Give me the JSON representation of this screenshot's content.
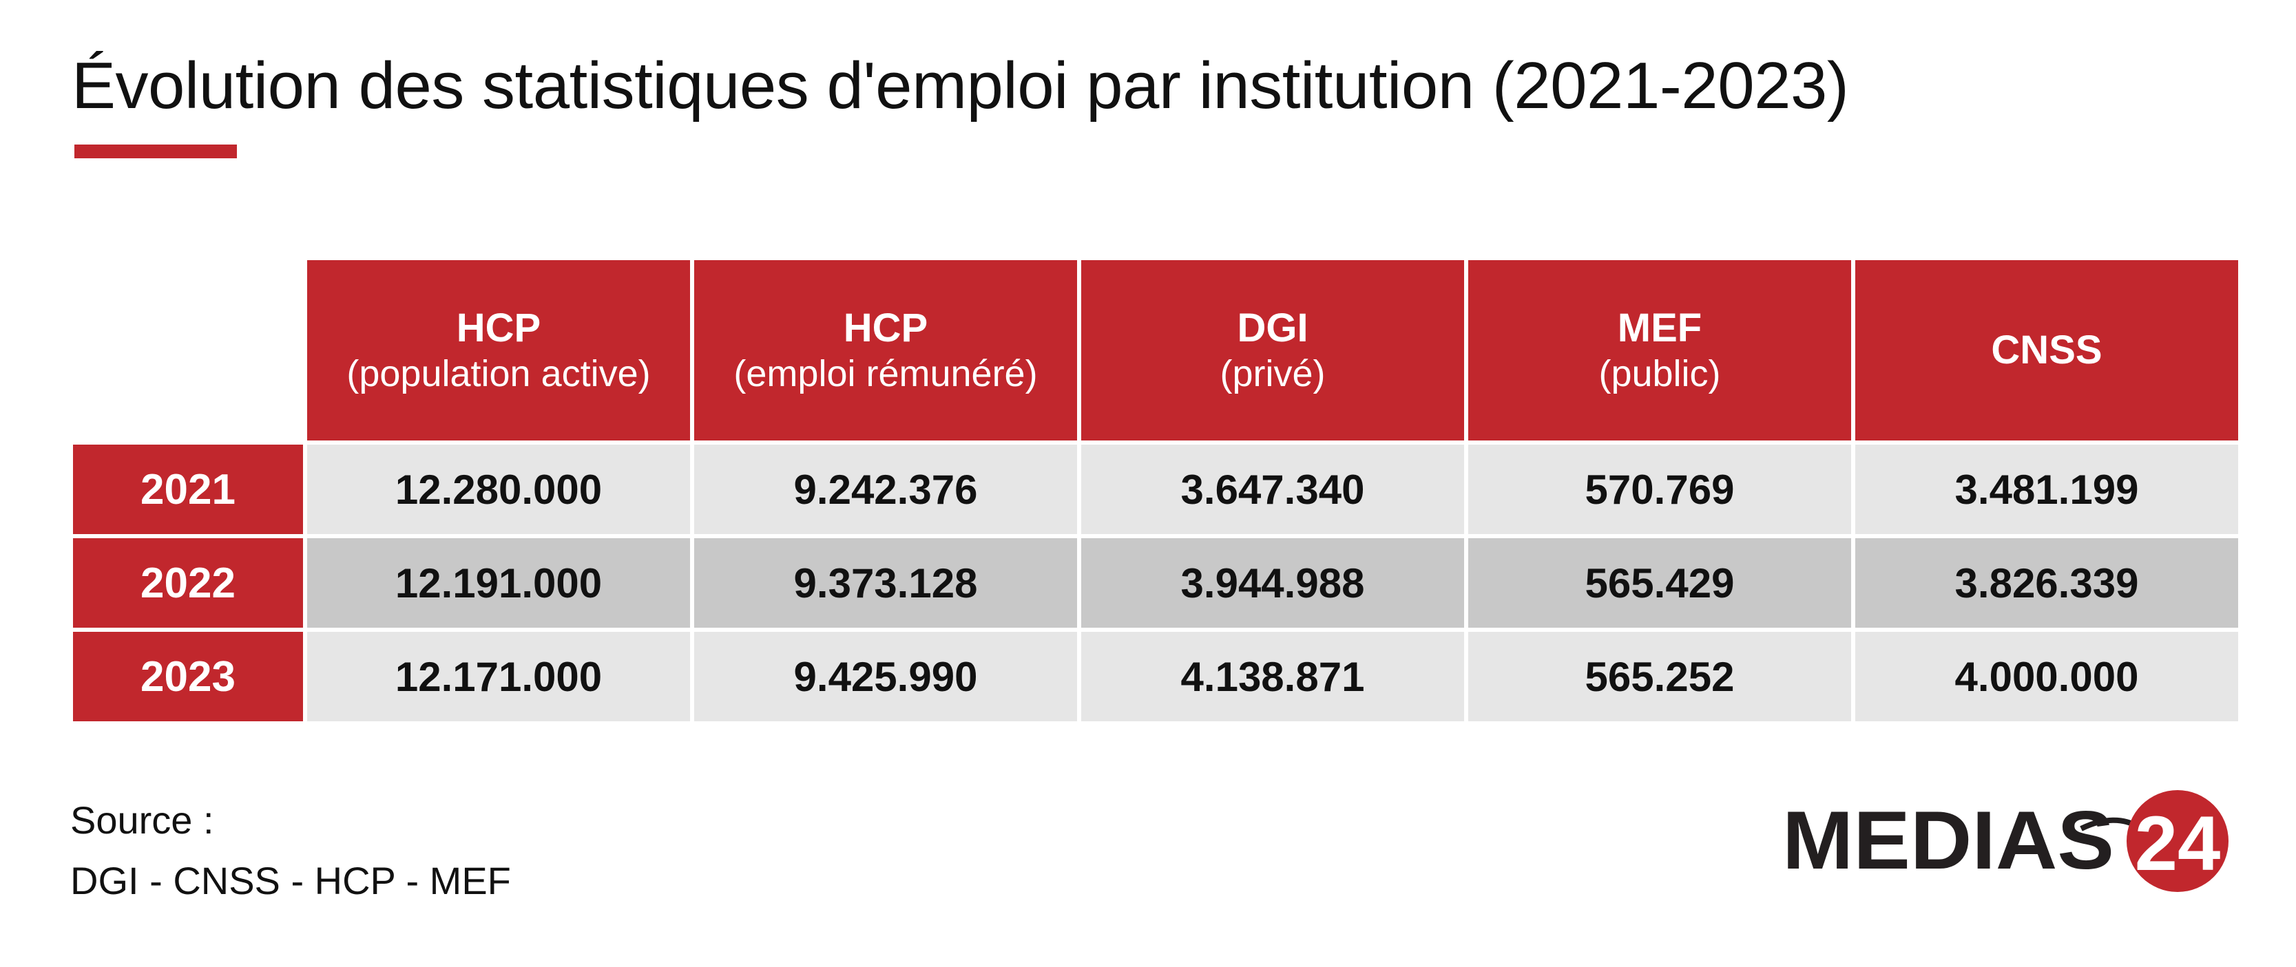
{
  "title": "Évolution des statistiques d'emploi par institution (2021-2023)",
  "chart_data": {
    "type": "table",
    "title": "Évolution des statistiques d'emploi par institution (2021-2023)",
    "columns": [
      {
        "main": "HCP",
        "sub": "(population active)"
      },
      {
        "main": "HCP",
        "sub": "(emploi rémunéré)"
      },
      {
        "main": "DGI",
        "sub": "(privé)"
      },
      {
        "main": "MEF",
        "sub": "(public)"
      },
      {
        "main": "CNSS",
        "sub": ""
      }
    ],
    "rows": [
      {
        "year": "2021",
        "values": [
          "12.280.000",
          "9.242.376",
          "3.647.340",
          "570.769",
          "3.481.199"
        ]
      },
      {
        "year": "2022",
        "values": [
          "12.191.000",
          "9.373.128",
          "3.944.988",
          "565.429",
          "3.826.339"
        ]
      },
      {
        "year": "2023",
        "values": [
          "12.171.000",
          "9.425.990",
          "4.138.871",
          "565.252",
          "4.000.000"
        ]
      }
    ]
  },
  "source": {
    "label": "Source :",
    "text": "DGI - CNSS - HCP - MEF"
  },
  "logo": {
    "text": "MEDIAS",
    "number": "24"
  },
  "colors": {
    "accent": "#c1272d",
    "row_light": "#e6e6e6",
    "row_dark": "#c8c8c8",
    "text": "#111111"
  }
}
